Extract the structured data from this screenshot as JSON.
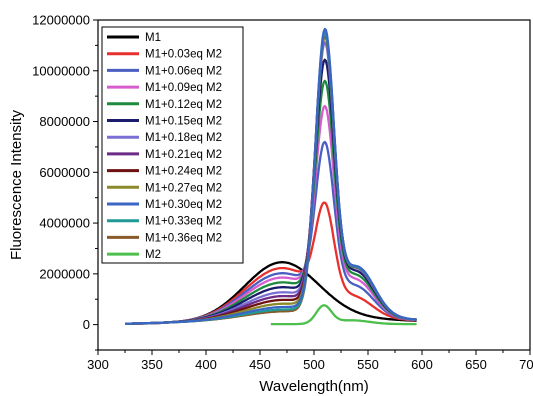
{
  "chart_data": {
    "type": "line",
    "xlabel": "Wavelength(nm)",
    "ylabel": "Fluorescence Intensity",
    "xlim": [
      300,
      700
    ],
    "ylim": [
      -1000000,
      12000000
    ],
    "xticks": [
      300,
      350,
      400,
      450,
      500,
      550,
      600,
      650,
      700
    ],
    "yticks": [
      0,
      2000000,
      4000000,
      6000000,
      8000000,
      10000000,
      12000000
    ],
    "xtick_labels": [
      "300",
      "350",
      "400",
      "450",
      "500",
      "550",
      "600",
      "650",
      "700"
    ],
    "ytick_labels": [
      "0",
      "2000000",
      "4000000",
      "6000000",
      "8000000",
      "10000000",
      "12000000"
    ],
    "grid": false,
    "legend_position": "top-left",
    "series": [
      {
        "name": "M1",
        "color": "#000000",
        "x_range": [
          325,
          595
        ],
        "broad_peak": 2250000,
        "peak": 0,
        "tail": 230000
      },
      {
        "name": "M1+0.03eq M2",
        "color": "#e8312e",
        "x_range": [
          325,
          595
        ],
        "broad_peak": 2000000,
        "peak": 3450000,
        "tail": 250000
      },
      {
        "name": "M1+0.06eq M2",
        "color": "#4a5fc1",
        "x_range": [
          325,
          595
        ],
        "broad_peak": 1780000,
        "peak": 5850000,
        "tail": 270000
      },
      {
        "name": "M1+0.09eq M2",
        "color": "#d65ccf",
        "x_range": [
          325,
          595
        ],
        "broad_peak": 1600000,
        "peak": 7300000,
        "tail": 280000
      },
      {
        "name": "M1+0.12eq M2",
        "color": "#1f8a3e",
        "x_range": [
          325,
          595
        ],
        "broad_peak": 1400000,
        "peak": 8350000,
        "tail": 290000
      },
      {
        "name": "M1+0.15eq M2",
        "color": "#1c1c6e",
        "x_range": [
          325,
          595
        ],
        "broad_peak": 1200000,
        "peak": 9250000,
        "tail": 300000
      },
      {
        "name": "M1+0.18eq M2",
        "color": "#7b6fd6",
        "x_range": [
          325,
          595
        ],
        "broad_peak": 1000000,
        "peak": 10000000,
        "tail": 300000
      },
      {
        "name": "M1+0.21eq M2",
        "color": "#6b2b86",
        "x_range": [
          325,
          595
        ],
        "broad_peak": 850000,
        "peak": 10350000,
        "tail": 300000
      },
      {
        "name": "M1+0.24eq M2",
        "color": "#6d1010",
        "x_range": [
          325,
          595
        ],
        "broad_peak": 700000,
        "peak": 10500000,
        "tail": 300000
      },
      {
        "name": "M1+0.27eq M2",
        "color": "#8a8a2c",
        "x_range": [
          325,
          595
        ],
        "broad_peak": 550000,
        "peak": 10550000,
        "tail": 300000
      },
      {
        "name": "M1+0.30eq M2",
        "color": "#3a66c4",
        "x_range": [
          325,
          595
        ],
        "broad_peak": 420000,
        "peak": 10800000,
        "tail": 300000
      },
      {
        "name": "M1+0.33eq M2",
        "color": "#1f9a96",
        "x_range": [
          325,
          595
        ],
        "broad_peak": 320000,
        "peak": 10700000,
        "tail": 300000
      },
      {
        "name": "M1+0.36eq M2",
        "color": "#8b5a2b",
        "x_range": [
          325,
          595
        ],
        "broad_peak": 250000,
        "peak": 10600000,
        "tail": 300000
      },
      {
        "name": "M2",
        "color": "#4cbf4c",
        "x_range": [
          460,
          595
        ],
        "broad_peak": 0,
        "peak": 700000,
        "tail": 20000
      }
    ]
  }
}
